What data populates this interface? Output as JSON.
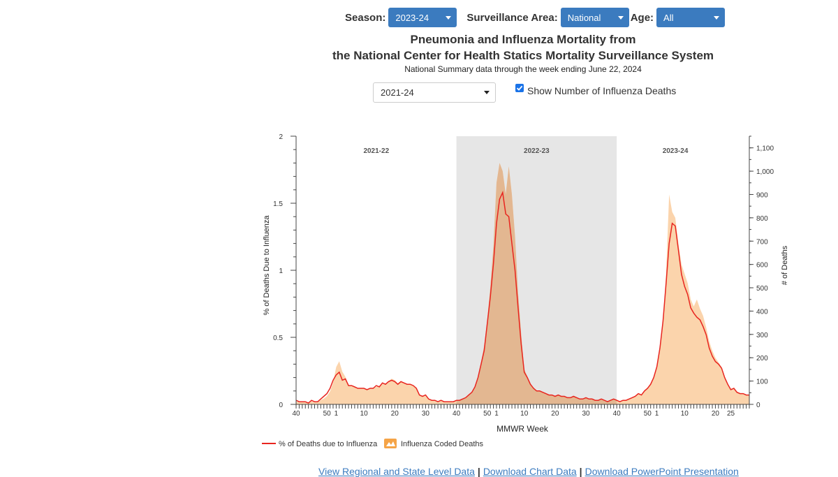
{
  "controls": {
    "season_label": "Season:",
    "season_value": "2023-24",
    "area_label": "Surveillance Area:",
    "area_value": "National",
    "age_label": "Age:",
    "age_value": "All"
  },
  "header": {
    "title_line1": "Pneumonia and Influenza Mortality from",
    "title_line2": "the National Center for Health Statics Mortality Surveillance System",
    "subtitle": "National Summary data through the week ending June 22, 2024"
  },
  "range_select": {
    "value": "2021-24"
  },
  "show_deaths": {
    "label": "Show Number of Influenza Deaths",
    "checked": true
  },
  "footer": {
    "link1": "View Regional and State Level Data",
    "link2": "Download Chart Data",
    "link3": "Download PowerPoint Presentation",
    "separator": "|"
  },
  "colors": {
    "line": "#e8251f",
    "area": "#fbd2a8",
    "area_dark": "#e3b791",
    "shade": "#e6e6e6",
    "accent": "#3b7bbf"
  },
  "chart_data": {
    "type": "line",
    "title": "Pneumonia and Influenza Mortality",
    "xlabel": "MMWR Week",
    "ylabel_left": "% of Deaths Due to Influenza",
    "ylabel_right": "# of Deaths",
    "ylim_left": [
      0,
      2
    ],
    "ylim_right": [
      0,
      1150
    ],
    "yticks_left": [
      "0",
      "0.5",
      "1",
      "1.5",
      "2"
    ],
    "yticks_right": [
      "0",
      "100",
      "200",
      "300",
      "400",
      "500",
      "600",
      "700",
      "800",
      "900",
      "1,000",
      "1,100"
    ],
    "xticks": [
      "40",
      "50",
      "1",
      "10",
      "20",
      "30",
      "40",
      "50",
      "1",
      "10",
      "20",
      "30",
      "40",
      "50",
      "1",
      "10",
      "20",
      "25"
    ],
    "season_labels": [
      "2021-22",
      "2022-23",
      "2023-24"
    ],
    "highlighted_season": "2022-23",
    "legend": [
      "% of Deaths due to Influenza",
      "Influenza Coded Deaths"
    ],
    "pct_series": [
      0.03,
      0.02,
      0.02,
      0.02,
      0.01,
      0.03,
      0.02,
      0.02,
      0.04,
      0.06,
      0.08,
      0.12,
      0.18,
      0.22,
      0.24,
      0.18,
      0.19,
      0.14,
      0.14,
      0.13,
      0.12,
      0.12,
      0.12,
      0.11,
      0.12,
      0.12,
      0.14,
      0.13,
      0.16,
      0.15,
      0.17,
      0.18,
      0.17,
      0.15,
      0.17,
      0.16,
      0.15,
      0.15,
      0.14,
      0.12,
      0.07,
      0.06,
      0.07,
      0.04,
      0.03,
      0.03,
      0.02,
      0.03,
      0.02,
      0.02,
      0.02,
      0.02,
      0.03,
      0.03,
      0.04,
      0.05,
      0.07,
      0.09,
      0.13,
      0.2,
      0.3,
      0.4,
      0.6,
      0.8,
      1.05,
      1.35,
      1.53,
      1.58,
      1.42,
      1.4,
      1.2,
      1.0,
      0.72,
      0.45,
      0.24,
      0.2,
      0.15,
      0.12,
      0.1,
      0.1,
      0.09,
      0.08,
      0.07,
      0.07,
      0.06,
      0.07,
      0.06,
      0.06,
      0.05,
      0.05,
      0.06,
      0.05,
      0.04,
      0.04,
      0.05,
      0.04,
      0.04,
      0.03,
      0.03,
      0.04,
      0.03,
      0.02,
      0.03,
      0.04,
      0.03,
      0.02,
      0.03,
      0.03,
      0.04,
      0.05,
      0.06,
      0.08,
      0.07,
      0.1,
      0.12,
      0.15,
      0.2,
      0.28,
      0.42,
      0.62,
      0.9,
      1.2,
      1.35,
      1.33,
      1.15,
      0.97,
      0.88,
      0.82,
      0.72,
      0.68,
      0.65,
      0.63,
      0.58,
      0.52,
      0.42,
      0.36,
      0.32,
      0.3,
      0.27,
      0.2,
      0.15,
      0.11,
      0.12,
      0.09,
      0.08,
      0.08,
      0.07,
      0.07
    ],
    "deaths_series": [
      12,
      10,
      10,
      9,
      8,
      12,
      10,
      10,
      18,
      25,
      35,
      55,
      95,
      160,
      185,
      140,
      118,
      82,
      80,
      74,
      70,
      70,
      70,
      66,
      68,
      70,
      75,
      80,
      88,
      85,
      100,
      110,
      104,
      90,
      100,
      94,
      88,
      86,
      78,
      70,
      40,
      34,
      36,
      24,
      18,
      16,
      12,
      14,
      12,
      12,
      11,
      12,
      15,
      15,
      22,
      28,
      40,
      52,
      78,
      118,
      180,
      250,
      360,
      500,
      680,
      950,
      1035,
      1000,
      900,
      1020,
      900,
      720,
      480,
      300,
      150,
      120,
      88,
      70,
      60,
      56,
      50,
      45,
      40,
      40,
      35,
      40,
      35,
      32,
      30,
      28,
      32,
      30,
      24,
      24,
      28,
      24,
      20,
      18,
      18,
      20,
      18,
      14,
      18,
      22,
      18,
      12,
      18,
      18,
      22,
      28,
      35,
      45,
      40,
      55,
      70,
      90,
      115,
      160,
      240,
      360,
      560,
      900,
      825,
      800,
      690,
      600,
      560,
      520,
      450,
      420,
      450,
      410,
      380,
      330,
      270,
      230,
      200,
      180,
      160,
      120,
      88,
      66,
      72,
      55,
      48,
      48,
      42,
      42
    ]
  }
}
